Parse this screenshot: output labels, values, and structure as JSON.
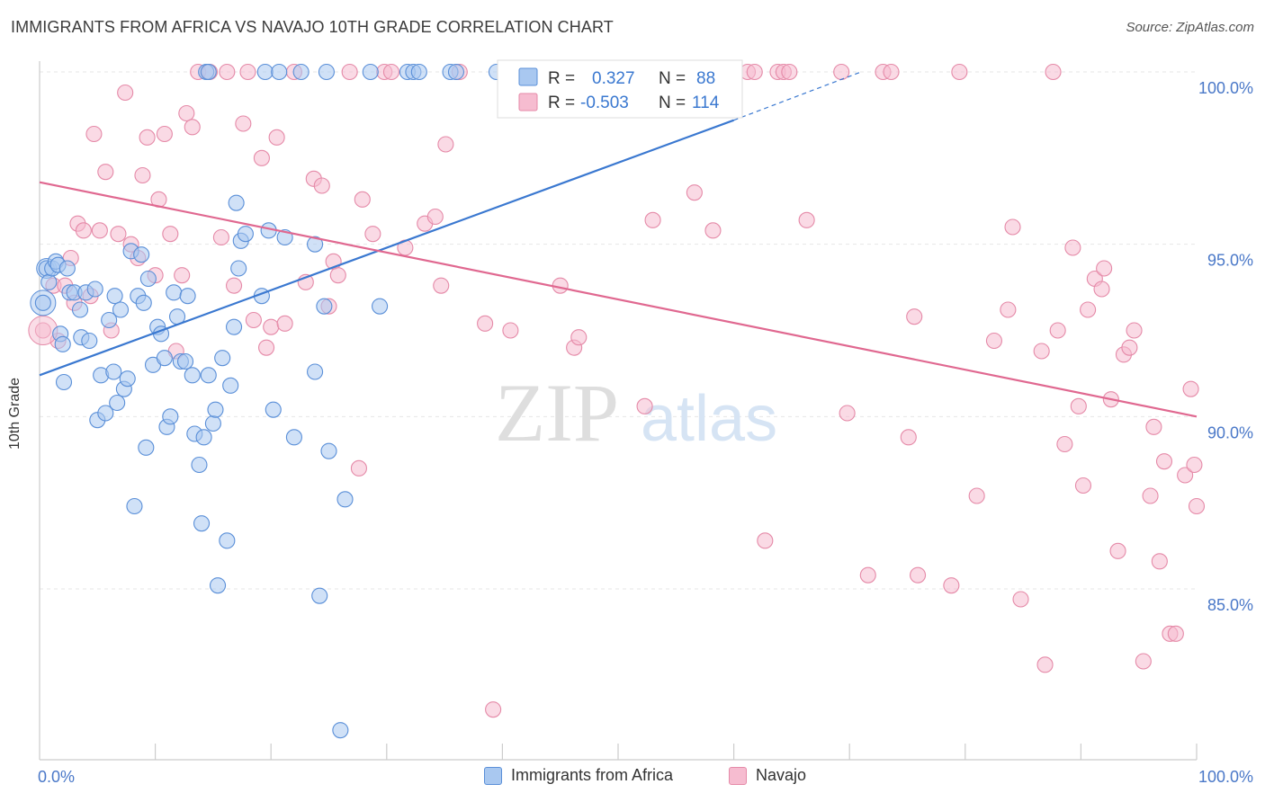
{
  "title": "IMMIGRANTS FROM AFRICA VS NAVAJO 10TH GRADE CORRELATION CHART",
  "source": "Source: ZipAtlas.com",
  "watermark": {
    "zip": "ZIP",
    "atlas": "atlas"
  },
  "colors": {
    "blue_fill": "#a9c8f0",
    "blue_stroke": "#5a8fd8",
    "blue_line": "#3a78d0",
    "pink_fill": "#f6bcd0",
    "pink_stroke": "#e58aa8",
    "pink_line": "#e06890",
    "axis_text": "#4a78c8"
  },
  "legend": {
    "rows": [
      {
        "r_label": "R =",
        "r_value": "0.327",
        "n_label": "N =",
        "n_value": "88"
      },
      {
        "r_label": "R =",
        "r_value": "-0.503",
        "n_label": "N =",
        "n_value": "114"
      }
    ]
  },
  "chart_data": {
    "type": "scatter",
    "title": "IMMIGRANTS FROM AFRICA VS NAVAJO 10TH GRADE CORRELATION CHART",
    "xlabel": "",
    "ylabel": "10th Grade",
    "xlim": [
      0,
      100
    ],
    "ylim": [
      80.9,
      100.8
    ],
    "x_tick_labels": [
      "0.0%",
      "100.0%"
    ],
    "y_ticks": [
      85,
      90,
      95,
      100
    ],
    "y_tick_labels": [
      "85.0%",
      "90.0%",
      "95.0%",
      "100.0%"
    ],
    "grid": true,
    "legend_position": "top-center",
    "series": [
      {
        "name": "Immigrants from Africa",
        "color": "#5a8fd8",
        "trend": {
          "x": [
            0,
            60
          ],
          "y": [
            91.2,
            98.6
          ],
          "dashed_to": [
            71,
            100.0
          ]
        },
        "points": [
          [
            0.3,
            93.3
          ],
          [
            0.6,
            94.3
          ],
          [
            0.8,
            93.9
          ],
          [
            1.1,
            94.3
          ],
          [
            1.4,
            94.5
          ],
          [
            1.6,
            94.4
          ],
          [
            1.8,
            92.4
          ],
          [
            2.0,
            92.1
          ],
          [
            2.1,
            91.0
          ],
          [
            2.4,
            94.3
          ],
          [
            2.6,
            93.6
          ],
          [
            3.0,
            93.6
          ],
          [
            3.5,
            93.1
          ],
          [
            3.6,
            92.3
          ],
          [
            4.0,
            93.6
          ],
          [
            4.3,
            92.2
          ],
          [
            4.8,
            93.7
          ],
          [
            5.0,
            89.9
          ],
          [
            5.3,
            91.2
          ],
          [
            5.7,
            90.1
          ],
          [
            6.0,
            92.8
          ],
          [
            6.4,
            91.3
          ],
          [
            6.5,
            93.5
          ],
          [
            6.7,
            90.4
          ],
          [
            7.0,
            93.1
          ],
          [
            7.3,
            90.8
          ],
          [
            7.6,
            91.1
          ],
          [
            7.9,
            94.8
          ],
          [
            8.2,
            87.4
          ],
          [
            8.5,
            93.5
          ],
          [
            8.8,
            94.7
          ],
          [
            9.0,
            93.3
          ],
          [
            9.2,
            89.1
          ],
          [
            9.4,
            94.0
          ],
          [
            9.8,
            91.5
          ],
          [
            10.2,
            92.6
          ],
          [
            10.5,
            92.4
          ],
          [
            10.8,
            91.7
          ],
          [
            11.0,
            89.7
          ],
          [
            11.3,
            90.0
          ],
          [
            11.6,
            93.6
          ],
          [
            11.9,
            92.9
          ],
          [
            12.2,
            91.6
          ],
          [
            12.6,
            91.6
          ],
          [
            12.8,
            93.5
          ],
          [
            13.2,
            91.2
          ],
          [
            13.4,
            89.5
          ],
          [
            13.8,
            88.6
          ],
          [
            14.0,
            86.9
          ],
          [
            14.2,
            89.4
          ],
          [
            14.6,
            91.2
          ],
          [
            15.0,
            89.8
          ],
          [
            15.2,
            90.2
          ],
          [
            15.4,
            85.1
          ],
          [
            15.8,
            91.7
          ],
          [
            16.2,
            86.4
          ],
          [
            16.5,
            90.9
          ],
          [
            16.8,
            92.6
          ],
          [
            17.0,
            96.2
          ],
          [
            17.2,
            94.3
          ],
          [
            17.4,
            95.1
          ],
          [
            17.8,
            95.3
          ],
          [
            19.2,
            93.5
          ],
          [
            19.5,
            100.0
          ],
          [
            19.8,
            95.4
          ],
          [
            20.2,
            90.2
          ],
          [
            20.7,
            100.0
          ],
          [
            21.2,
            95.2
          ],
          [
            22.0,
            89.4
          ],
          [
            22.6,
            100.0
          ],
          [
            23.8,
            95.0
          ],
          [
            23.8,
            91.3
          ],
          [
            24.2,
            84.8
          ],
          [
            24.6,
            93.2
          ],
          [
            24.8,
            100.0
          ],
          [
            25.0,
            89.0
          ],
          [
            26.0,
            80.9
          ],
          [
            26.4,
            87.6
          ],
          [
            28.6,
            100.0
          ],
          [
            29.4,
            93.2
          ],
          [
            31.8,
            100.0
          ],
          [
            32.3,
            100.0
          ],
          [
            32.8,
            100.0
          ],
          [
            35.5,
            100.0
          ],
          [
            39.5,
            100.0
          ],
          [
            14.4,
            100.0
          ],
          [
            14.6,
            100.0
          ],
          [
            36.0,
            100.0
          ]
        ]
      },
      {
        "name": "Navajo",
        "color": "#e58aa8",
        "trend": {
          "x": [
            0,
            100
          ],
          "y": [
            96.8,
            90.0
          ]
        },
        "points": [
          [
            0.3,
            92.5
          ],
          [
            1.2,
            93.8
          ],
          [
            1.6,
            92.2
          ],
          [
            2.2,
            93.8
          ],
          [
            2.7,
            94.6
          ],
          [
            3.0,
            93.3
          ],
          [
            3.3,
            95.6
          ],
          [
            3.8,
            95.4
          ],
          [
            4.4,
            93.5
          ],
          [
            4.7,
            98.2
          ],
          [
            5.2,
            95.4
          ],
          [
            5.7,
            97.1
          ],
          [
            6.2,
            92.5
          ],
          [
            6.8,
            95.3
          ],
          [
            7.4,
            99.4
          ],
          [
            7.9,
            95.0
          ],
          [
            8.5,
            94.6
          ],
          [
            8.9,
            97.0
          ],
          [
            9.3,
            98.1
          ],
          [
            10.0,
            94.1
          ],
          [
            10.3,
            96.3
          ],
          [
            10.8,
            98.2
          ],
          [
            11.3,
            95.3
          ],
          [
            11.8,
            91.9
          ],
          [
            12.3,
            94.1
          ],
          [
            12.7,
            98.8
          ],
          [
            13.2,
            98.4
          ],
          [
            13.7,
            100.0
          ],
          [
            14.7,
            100.0
          ],
          [
            15.7,
            95.2
          ],
          [
            16.2,
            100.0
          ],
          [
            16.8,
            93.8
          ],
          [
            17.6,
            98.5
          ],
          [
            18.0,
            100.0
          ],
          [
            18.5,
            92.8
          ],
          [
            19.2,
            97.5
          ],
          [
            19.6,
            92.0
          ],
          [
            20.0,
            92.6
          ],
          [
            20.5,
            98.1
          ],
          [
            21.2,
            92.7
          ],
          [
            22.0,
            100.0
          ],
          [
            23.0,
            93.9
          ],
          [
            23.7,
            96.9
          ],
          [
            24.4,
            96.7
          ],
          [
            25.0,
            93.2
          ],
          [
            25.4,
            94.5
          ],
          [
            25.8,
            94.1
          ],
          [
            26.8,
            100.0
          ],
          [
            27.6,
            88.5
          ],
          [
            27.9,
            96.3
          ],
          [
            28.8,
            95.3
          ],
          [
            29.8,
            100.0
          ],
          [
            30.4,
            100.0
          ],
          [
            31.6,
            94.9
          ],
          [
            33.3,
            95.6
          ],
          [
            34.2,
            95.8
          ],
          [
            34.7,
            93.8
          ],
          [
            35.1,
            97.9
          ],
          [
            36.3,
            100.0
          ],
          [
            38.5,
            92.7
          ],
          [
            39.2,
            81.5
          ],
          [
            40.7,
            92.5
          ],
          [
            42.6,
            100.0
          ],
          [
            45.0,
            93.8
          ],
          [
            46.2,
            92.0
          ],
          [
            46.6,
            92.3
          ],
          [
            52.3,
            90.3
          ],
          [
            53.0,
            95.7
          ],
          [
            56.5,
            100.0
          ],
          [
            56.6,
            96.5
          ],
          [
            58.2,
            95.4
          ],
          [
            61.2,
            100.0
          ],
          [
            61.8,
            100.0
          ],
          [
            62.7,
            86.4
          ],
          [
            63.8,
            100.0
          ],
          [
            64.3,
            100.0
          ],
          [
            64.8,
            100.0
          ],
          [
            66.3,
            95.7
          ],
          [
            69.3,
            100.0
          ],
          [
            69.8,
            90.1
          ],
          [
            71.6,
            85.4
          ],
          [
            72.9,
            100.0
          ],
          [
            73.6,
            100.0
          ],
          [
            75.1,
            89.4
          ],
          [
            75.6,
            92.9
          ],
          [
            75.9,
            85.4
          ],
          [
            78.8,
            85.1
          ],
          [
            79.5,
            100.0
          ],
          [
            81.0,
            87.7
          ],
          [
            82.5,
            92.2
          ],
          [
            83.7,
            93.1
          ],
          [
            84.1,
            95.5
          ],
          [
            84.8,
            84.7
          ],
          [
            86.6,
            91.9
          ],
          [
            86.9,
            82.8
          ],
          [
            87.6,
            100.0
          ],
          [
            88.0,
            92.5
          ],
          [
            88.6,
            89.2
          ],
          [
            89.3,
            94.9
          ],
          [
            89.8,
            90.3
          ],
          [
            90.2,
            88.0
          ],
          [
            90.6,
            93.1
          ],
          [
            91.2,
            94.0
          ],
          [
            91.8,
            93.7
          ],
          [
            92.0,
            94.3
          ],
          [
            92.6,
            90.5
          ],
          [
            93.2,
            86.1
          ],
          [
            93.7,
            91.8
          ],
          [
            94.2,
            92.0
          ],
          [
            94.6,
            92.5
          ],
          [
            95.4,
            82.9
          ],
          [
            96.0,
            87.7
          ],
          [
            96.3,
            89.7
          ],
          [
            96.8,
            85.8
          ],
          [
            97.2,
            88.7
          ],
          [
            97.7,
            83.7
          ],
          [
            98.2,
            83.7
          ],
          [
            99.0,
            88.3
          ],
          [
            99.5,
            90.8
          ],
          [
            99.8,
            88.6
          ],
          [
            100.0,
            87.4
          ]
        ]
      }
    ]
  }
}
